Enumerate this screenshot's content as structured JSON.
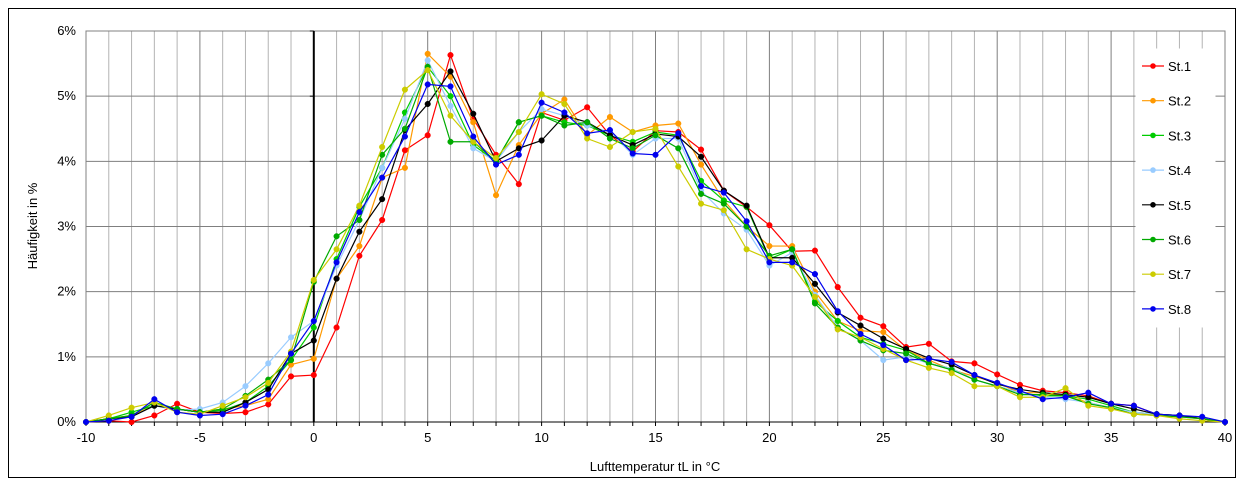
{
  "chart_data": {
    "type": "line",
    "xlabel": "Lufttemperatur tL in °C",
    "ylabel": "Häufigkeit in %",
    "xlim": [
      -10,
      40
    ],
    "ylim": [
      0,
      6
    ],
    "x_ticks": [
      "-10",
      "-5",
      "0",
      "5",
      "10",
      "15",
      "20",
      "25",
      "30",
      "35",
      "40"
    ],
    "y_ticks": [
      "0%",
      "1%",
      "2%",
      "3%",
      "4%",
      "5%",
      "6%"
    ],
    "grid": "vertical every 1 °C, horizontal every 1 %",
    "legend_position": "right",
    "x": [
      -10,
      -9,
      -8,
      -7,
      -6,
      -5,
      -4,
      -3,
      -2,
      -1,
      0,
      1,
      2,
      3,
      4,
      5,
      6,
      7,
      8,
      9,
      10,
      11,
      12,
      13,
      14,
      15,
      16,
      17,
      18,
      19,
      20,
      21,
      22,
      23,
      24,
      25,
      26,
      27,
      28,
      29,
      30,
      31,
      32,
      33,
      34,
      35,
      36,
      37,
      38,
      39,
      40
    ],
    "series": [
      {
        "name": "St.1",
        "color": "#ff0000",
        "values": [
          0.0,
          0.02,
          0.0,
          0.1,
          0.28,
          0.15,
          0.13,
          0.15,
          0.27,
          0.7,
          0.72,
          1.45,
          2.55,
          3.1,
          4.17,
          4.4,
          5.63,
          4.65,
          4.1,
          3.65,
          4.75,
          4.63,
          4.83,
          4.4,
          4.15,
          4.47,
          4.45,
          4.18,
          3.55,
          3.3,
          3.02,
          2.62,
          2.63,
          2.07,
          1.6,
          1.47,
          1.15,
          1.2,
          0.93,
          0.9,
          0.73,
          0.57,
          0.48,
          0.45,
          0.4,
          0.28,
          0.25,
          0.12,
          0.1,
          0.05,
          0.0
        ]
      },
      {
        "name": "St.2",
        "color": "#ff9900",
        "values": [
          0.0,
          0.05,
          0.1,
          0.25,
          0.2,
          0.15,
          0.2,
          0.25,
          0.35,
          0.88,
          0.97,
          2.2,
          2.7,
          3.75,
          3.9,
          5.65,
          5.3,
          4.6,
          3.48,
          4.25,
          4.73,
          4.95,
          4.4,
          4.68,
          4.45,
          4.55,
          4.58,
          3.95,
          3.4,
          3.0,
          2.7,
          2.7,
          2.0,
          1.55,
          1.4,
          1.38,
          1.1,
          0.95,
          0.8,
          0.7,
          0.6,
          0.45,
          0.45,
          0.4,
          0.3,
          0.22,
          0.15,
          0.1,
          0.08,
          0.05,
          0.0
        ]
      },
      {
        "name": "St.3",
        "color": "#00cc00",
        "values": [
          0.0,
          0.05,
          0.15,
          0.25,
          0.2,
          0.15,
          0.18,
          0.3,
          0.55,
          0.95,
          1.45,
          2.5,
          3.3,
          3.9,
          4.75,
          5.45,
          5.0,
          4.25,
          4.0,
          4.6,
          4.7,
          4.6,
          4.55,
          4.4,
          4.3,
          4.45,
          4.4,
          3.7,
          3.4,
          3.3,
          2.5,
          2.65,
          1.85,
          1.55,
          1.3,
          1.2,
          1.1,
          0.9,
          0.82,
          0.65,
          0.55,
          0.45,
          0.4,
          0.4,
          0.35,
          0.25,
          0.15,
          0.12,
          0.1,
          0.05,
          0.0
        ]
      },
      {
        "name": "St.4",
        "color": "#99ccff",
        "values": [
          0.0,
          0.05,
          0.08,
          0.25,
          0.18,
          0.2,
          0.3,
          0.55,
          0.9,
          1.3,
          1.55,
          2.4,
          3.1,
          3.9,
          4.65,
          5.55,
          4.85,
          4.2,
          4.0,
          4.45,
          4.8,
          4.7,
          4.55,
          4.45,
          4.1,
          4.35,
          4.35,
          3.55,
          3.2,
          2.95,
          2.4,
          2.6,
          1.95,
          1.45,
          1.25,
          0.95,
          1.0,
          0.9,
          0.82,
          0.65,
          0.55,
          0.45,
          0.38,
          0.35,
          0.3,
          0.22,
          0.15,
          0.12,
          0.08,
          0.05,
          0.0
        ]
      },
      {
        "name": "St.5",
        "color": "#000000",
        "values": [
          0.0,
          0.05,
          0.08,
          0.25,
          0.2,
          0.15,
          0.15,
          0.3,
          0.5,
          1.05,
          1.25,
          2.2,
          2.92,
          3.42,
          4.48,
          4.88,
          5.38,
          4.73,
          4.0,
          4.2,
          4.32,
          4.7,
          4.6,
          4.4,
          4.25,
          4.42,
          4.38,
          4.07,
          3.55,
          3.32,
          2.52,
          2.52,
          2.12,
          1.68,
          1.48,
          1.28,
          1.12,
          0.98,
          0.88,
          0.72,
          0.58,
          0.5,
          0.45,
          0.42,
          0.38,
          0.28,
          0.2,
          0.12,
          0.1,
          0.05,
          0.0
        ]
      },
      {
        "name": "St.6",
        "color": "#00aa00",
        "values": [
          0.0,
          0.05,
          0.1,
          0.3,
          0.2,
          0.15,
          0.2,
          0.4,
          0.65,
          0.95,
          2.15,
          2.85,
          3.1,
          4.1,
          4.5,
          5.45,
          4.3,
          4.3,
          4.0,
          4.6,
          4.7,
          4.55,
          4.6,
          4.35,
          4.2,
          4.4,
          4.2,
          3.5,
          3.35,
          3.0,
          2.55,
          2.65,
          1.82,
          1.45,
          1.25,
          1.1,
          1.05,
          0.9,
          0.8,
          0.65,
          0.55,
          0.42,
          0.42,
          0.4,
          0.28,
          0.22,
          0.12,
          0.1,
          0.08,
          0.05,
          0.0
        ]
      },
      {
        "name": "St.7",
        "color": "#cccc00",
        "values": [
          0.0,
          0.1,
          0.22,
          0.3,
          0.15,
          0.12,
          0.25,
          0.38,
          0.6,
          1.08,
          2.18,
          2.65,
          3.32,
          4.22,
          5.1,
          5.4,
          4.7,
          4.3,
          4.05,
          4.45,
          5.03,
          4.88,
          4.35,
          4.22,
          4.45,
          4.5,
          3.92,
          3.35,
          3.25,
          2.65,
          2.5,
          2.4,
          1.92,
          1.42,
          1.3,
          1.12,
          0.95,
          0.83,
          0.75,
          0.55,
          0.55,
          0.38,
          0.38,
          0.52,
          0.25,
          0.2,
          0.12,
          0.1,
          0.05,
          0.02,
          0.0
        ]
      },
      {
        "name": "St.8",
        "color": "#0000ee",
        "values": [
          0.0,
          0.02,
          0.08,
          0.35,
          0.15,
          0.1,
          0.12,
          0.25,
          0.42,
          1.05,
          1.55,
          2.45,
          3.22,
          3.75,
          4.38,
          5.18,
          5.15,
          4.38,
          3.95,
          4.1,
          4.9,
          4.75,
          4.43,
          4.48,
          4.12,
          4.1,
          4.43,
          3.62,
          3.52,
          3.08,
          2.45,
          2.45,
          2.27,
          1.7,
          1.35,
          1.18,
          0.95,
          0.97,
          0.92,
          0.72,
          0.6,
          0.48,
          0.35,
          0.38,
          0.45,
          0.28,
          0.25,
          0.12,
          0.1,
          0.08,
          0.0
        ]
      }
    ]
  }
}
